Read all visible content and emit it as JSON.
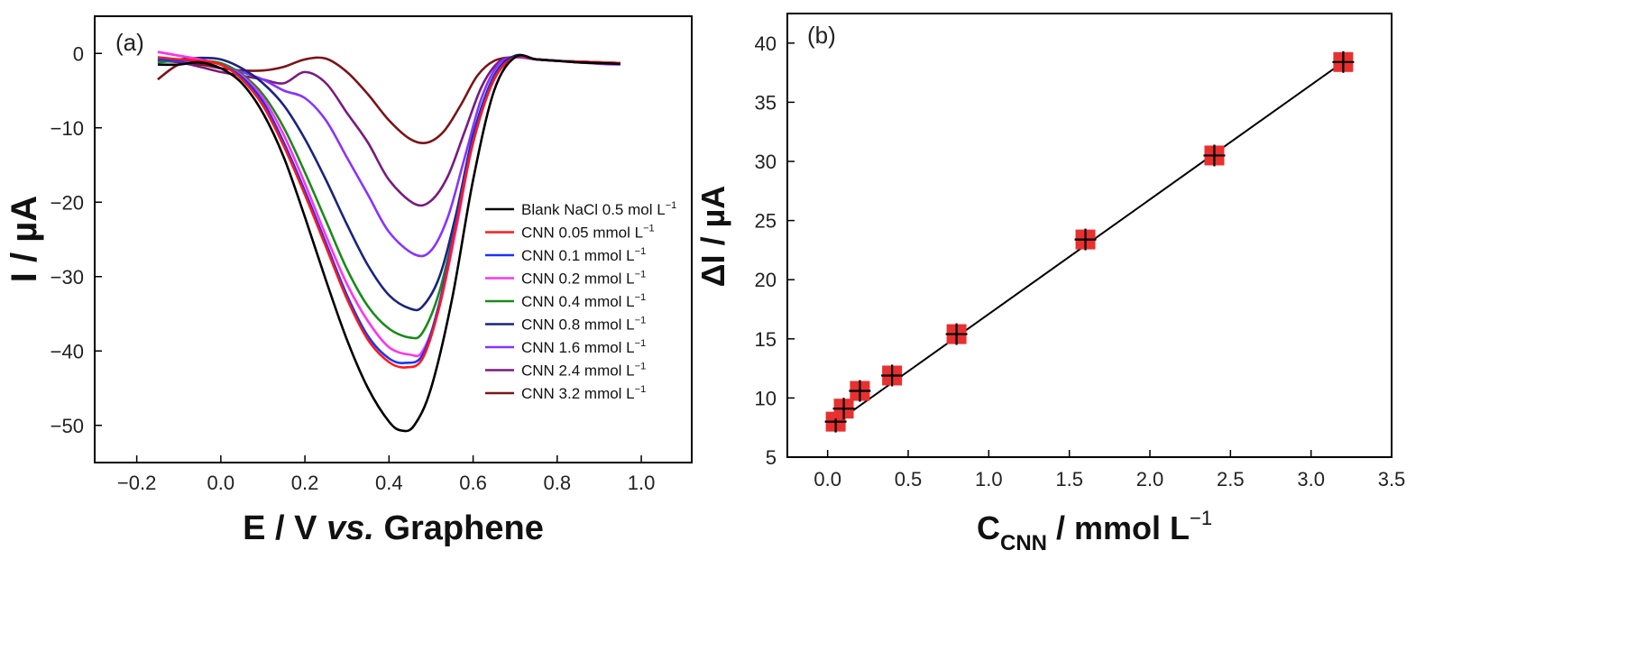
{
  "chart_data": [
    {
      "type": "line",
      "panel_label": "(a)",
      "xlabel_parts": [
        "E / V ",
        "vs.",
        " Graphene"
      ],
      "ylabel": "I / µA",
      "xlim": [
        -0.3,
        1.12
      ],
      "ylim": [
        -55,
        5
      ],
      "xticks": [
        -0.2,
        0.0,
        0.2,
        0.4,
        0.6,
        0.8,
        1.0
      ],
      "xtick_labels": [
        "−0.2",
        "0.0",
        "0.2",
        "0.4",
        "0.6",
        "0.8",
        "1.0"
      ],
      "yticks": [
        0,
        -10,
        -20,
        -30,
        -40,
        -50
      ],
      "ytick_labels": [
        "0",
        "−10",
        "−20",
        "−30",
        "−40",
        "−50"
      ],
      "legend_position": "right",
      "series": [
        {
          "name": "Blank NaCl 0.5 mol L",
          "unit_sup": "−1",
          "color": "#000000",
          "x": [
            -0.15,
            -0.1,
            -0.05,
            0.0,
            0.05,
            0.1,
            0.15,
            0.2,
            0.25,
            0.3,
            0.35,
            0.4,
            0.43,
            0.46,
            0.5,
            0.55,
            0.6,
            0.65,
            0.7,
            0.75,
            0.8,
            0.85,
            0.9,
            0.95
          ],
          "y": [
            -1.5,
            -1.5,
            -1.2,
            -2.0,
            -4.0,
            -8.0,
            -14.0,
            -22.0,
            -30.5,
            -38.5,
            -45.0,
            -49.5,
            -50.7,
            -50.0,
            -45.0,
            -33.0,
            -17.0,
            -5.0,
            -0.5,
            -0.8,
            -1.0,
            -1.2,
            -1.3,
            -1.4
          ]
        },
        {
          "name": "CNN 0.05 mmol L",
          "unit_sup": "−1",
          "color": "#ff1a1a",
          "x": [
            -0.15,
            -0.1,
            -0.05,
            0.0,
            0.05,
            0.1,
            0.15,
            0.2,
            0.25,
            0.3,
            0.35,
            0.4,
            0.44,
            0.48,
            0.52,
            0.56,
            0.6,
            0.65,
            0.7,
            0.75,
            0.8,
            0.85,
            0.9,
            0.95
          ],
          "y": [
            -0.5,
            -0.8,
            -1.0,
            -1.5,
            -3.5,
            -7.0,
            -12.5,
            -19.0,
            -26.0,
            -33.0,
            -38.5,
            -41.5,
            -42.2,
            -41.0,
            -34.0,
            -23.0,
            -12.0,
            -3.5,
            -0.5,
            -0.8,
            -1.0,
            -1.1,
            -1.2,
            -1.3
          ]
        },
        {
          "name": "CNN 0.1 mmol L",
          "unit_sup": "−1",
          "color": "#1a33ff",
          "x": [
            -0.15,
            -0.1,
            -0.05,
            0.0,
            0.05,
            0.1,
            0.15,
            0.2,
            0.25,
            0.3,
            0.35,
            0.4,
            0.44,
            0.48,
            0.52,
            0.56,
            0.6,
            0.65,
            0.7,
            0.75,
            0.8,
            0.85,
            0.9,
            0.95
          ],
          "y": [
            -0.8,
            -1.0,
            -1.0,
            -1.5,
            -3.2,
            -6.5,
            -12.0,
            -18.5,
            -25.5,
            -32.5,
            -38.0,
            -41.0,
            -41.6,
            -40.5,
            -33.5,
            -22.5,
            -11.5,
            -3.2,
            -0.5,
            -0.8,
            -1.0,
            -1.1,
            -1.2,
            -1.3
          ]
        },
        {
          "name": "CNN 0.2 mmol L",
          "unit_sup": "−1",
          "color": "#ff33ee",
          "x": [
            -0.15,
            -0.1,
            -0.05,
            0.0,
            0.05,
            0.1,
            0.15,
            0.2,
            0.25,
            0.3,
            0.35,
            0.4,
            0.45,
            0.48,
            0.52,
            0.56,
            0.6,
            0.65,
            0.7,
            0.75,
            0.8,
            0.85,
            0.9,
            0.95
          ],
          "y": [
            0.2,
            -0.3,
            -0.8,
            -1.5,
            -3.0,
            -6.0,
            -11.0,
            -17.5,
            -24.5,
            -31.0,
            -36.0,
            -39.5,
            -40.5,
            -40.0,
            -34.0,
            -23.5,
            -12.0,
            -3.5,
            -0.5,
            -0.8,
            -1.0,
            -1.1,
            -1.2,
            -1.3
          ]
        },
        {
          "name": "CNN 0.4 mmol L",
          "unit_sup": "−1",
          "color": "#1a8a1a",
          "x": [
            -0.15,
            -0.1,
            -0.05,
            0.0,
            0.05,
            0.1,
            0.15,
            0.2,
            0.25,
            0.3,
            0.35,
            0.4,
            0.45,
            0.48,
            0.52,
            0.56,
            0.6,
            0.65,
            0.7,
            0.75,
            0.8,
            0.85,
            0.9,
            0.95
          ],
          "y": [
            -1.2,
            -1.0,
            -1.0,
            -1.3,
            -2.8,
            -5.5,
            -10.0,
            -16.0,
            -22.5,
            -29.0,
            -34.0,
            -37.0,
            -38.2,
            -37.5,
            -32.0,
            -22.5,
            -11.5,
            -3.5,
            -0.5,
            -0.8,
            -1.0,
            -1.1,
            -1.2,
            -1.3
          ]
        },
        {
          "name": "CNN 0.8 mmol L",
          "unit_sup": "−1",
          "color": "#1a2380",
          "x": [
            -0.15,
            -0.1,
            -0.05,
            0.0,
            0.05,
            0.1,
            0.15,
            0.2,
            0.25,
            0.3,
            0.35,
            0.4,
            0.45,
            0.48,
            0.52,
            0.56,
            0.6,
            0.65,
            0.7,
            0.75,
            0.8,
            0.85,
            0.9,
            0.95
          ],
          "y": [
            -0.8,
            -0.8,
            -0.6,
            -0.8,
            -2.0,
            -4.0,
            -7.0,
            -11.5,
            -17.0,
            -23.0,
            -28.5,
            -32.5,
            -34.3,
            -34.0,
            -30.0,
            -21.5,
            -11.0,
            -3.0,
            -0.3,
            -0.8,
            -1.0,
            -1.1,
            -1.2,
            -1.3
          ]
        },
        {
          "name": "CNN 1.6 mmol L",
          "unit_sup": "−1",
          "color": "#8833ff",
          "x": [
            -0.15,
            -0.1,
            -0.05,
            0.0,
            0.05,
            0.1,
            0.15,
            0.2,
            0.25,
            0.3,
            0.35,
            0.4,
            0.46,
            0.5,
            0.54,
            0.58,
            0.62,
            0.66,
            0.7,
            0.75,
            0.8,
            0.85,
            0.9,
            0.95
          ],
          "y": [
            0.2,
            -0.3,
            -0.8,
            -1.5,
            -2.5,
            -3.5,
            -5.0,
            -6.0,
            -9.0,
            -14.0,
            -19.0,
            -24.0,
            -27.0,
            -26.5,
            -22.0,
            -14.0,
            -6.0,
            -1.5,
            -0.5,
            -0.8,
            -1.0,
            -1.2,
            -1.4,
            -1.5
          ]
        },
        {
          "name": "CNN 2.4 mmol L",
          "unit_sup": "−1",
          "color": "#7a1a80",
          "x": [
            -0.15,
            -0.1,
            -0.05,
            0.0,
            0.05,
            0.1,
            0.15,
            0.2,
            0.25,
            0.3,
            0.35,
            0.4,
            0.46,
            0.5,
            0.54,
            0.58,
            0.62,
            0.66,
            0.7,
            0.75,
            0.8,
            0.85,
            0.9,
            0.95
          ],
          "y": [
            -1.0,
            -1.2,
            -1.8,
            -2.5,
            -3.0,
            -3.5,
            -4.0,
            -2.5,
            -4.0,
            -8.0,
            -12.0,
            -17.0,
            -20.2,
            -19.8,
            -16.5,
            -10.5,
            -4.5,
            -1.2,
            -0.5,
            -0.8,
            -1.0,
            -1.2,
            -1.3,
            -1.4
          ]
        },
        {
          "name": "CNN 3.2 mmol L",
          "unit_sup": "−1",
          "color": "#7a1418",
          "x": [
            -0.15,
            -0.1,
            -0.05,
            0.0,
            0.05,
            0.1,
            0.15,
            0.2,
            0.25,
            0.3,
            0.35,
            0.4,
            0.45,
            0.49,
            0.53,
            0.57,
            0.61,
            0.65,
            0.7,
            0.75,
            0.8,
            0.85,
            0.9,
            0.95
          ],
          "y": [
            -3.5,
            -1.5,
            -1.5,
            -2.0,
            -2.3,
            -2.3,
            -1.8,
            -0.8,
            -0.7,
            -2.5,
            -5.5,
            -9.0,
            -11.5,
            -12.0,
            -10.5,
            -7.0,
            -3.0,
            -1.0,
            -0.5,
            -0.8,
            -1.0,
            -1.1,
            -1.2,
            -1.3
          ]
        }
      ]
    },
    {
      "type": "scatter",
      "panel_label": "(b)",
      "xlabel_main": "C",
      "xlabel_sub": "CNN",
      "xlabel_rest": " / mmol L",
      "xlabel_sup": "−1",
      "ylabel": "ΔI / µA",
      "xlim": [
        -0.25,
        3.5
      ],
      "ylim": [
        5,
        42.5
      ],
      "xticks": [
        0.0,
        0.5,
        1.0,
        1.5,
        2.0,
        2.5,
        3.0,
        3.5
      ],
      "xtick_labels": [
        "0.0",
        "0.5",
        "1.0",
        "1.5",
        "2.0",
        "2.5",
        "3.0",
        "3.5"
      ],
      "yticks": [
        5,
        10,
        15,
        20,
        25,
        30,
        35,
        40
      ],
      "ytick_labels": [
        "5",
        "10",
        "15",
        "20",
        "25",
        "30",
        "35",
        "40"
      ],
      "points": {
        "x": [
          0.05,
          0.1,
          0.2,
          0.4,
          0.8,
          1.6,
          2.4,
          3.2
        ],
        "y": [
          8.0,
          9.1,
          10.6,
          11.9,
          15.4,
          23.4,
          30.5,
          38.4
        ]
      },
      "fit": {
        "x": [
          0.05,
          3.2
        ],
        "y": [
          7.9,
          38.4
        ]
      },
      "marker_color": "#e83030",
      "line_color": "#000000"
    }
  ]
}
